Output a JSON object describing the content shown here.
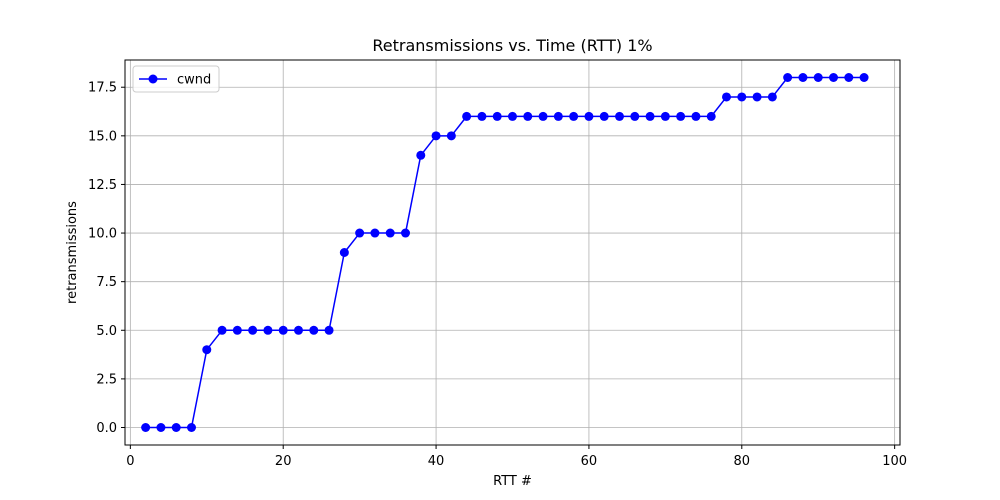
{
  "chart_data": {
    "type": "line",
    "title": "Retransmissions vs. Time (RTT) 1%",
    "xlabel": "RTT #",
    "ylabel": "retransmissions",
    "xlim": [
      -0.7,
      100.7
    ],
    "ylim": [
      -0.9,
      18.9
    ],
    "xticks": [
      0,
      20,
      40,
      60,
      80,
      100
    ],
    "yticks": [
      0.0,
      2.5,
      5.0,
      7.5,
      10.0,
      12.5,
      15.0,
      17.5
    ],
    "xtick_labels": [
      "0",
      "20",
      "40",
      "60",
      "80",
      "100"
    ],
    "ytick_labels": [
      "0.0",
      "2.5",
      "5.0",
      "7.5",
      "10.0",
      "12.5",
      "15.0",
      "17.5"
    ],
    "grid": true,
    "legend_position": "top-left",
    "series": [
      {
        "name": "cwnd",
        "color": "#0000ff",
        "marker": "circle",
        "x": [
          2,
          4,
          6,
          8,
          10,
          12,
          14,
          16,
          18,
          20,
          22,
          24,
          26,
          28,
          30,
          32,
          34,
          36,
          38,
          40,
          42,
          44,
          46,
          48,
          50,
          52,
          54,
          56,
          58,
          60,
          62,
          64,
          66,
          68,
          70,
          72,
          74,
          76,
          78,
          80,
          82,
          84,
          86,
          88,
          90,
          92,
          94,
          96
        ],
        "y": [
          0,
          0,
          0,
          0,
          4,
          5,
          5,
          5,
          5,
          5,
          5,
          5,
          5,
          9,
          10,
          10,
          10,
          10,
          14,
          15,
          15,
          16,
          16,
          16,
          16,
          16,
          16,
          16,
          16,
          16,
          16,
          16,
          16,
          16,
          16,
          16,
          16,
          16,
          17,
          17,
          17,
          17,
          18,
          18,
          18,
          18,
          18,
          18
        ]
      }
    ]
  }
}
